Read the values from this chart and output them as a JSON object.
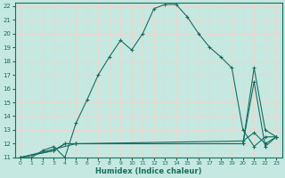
{
  "xlabel": "Humidex (Indice chaleur)",
  "xlim": [
    -0.5,
    23.5
  ],
  "ylim": [
    11,
    22.2
  ],
  "xticks": [
    0,
    1,
    2,
    3,
    4,
    5,
    6,
    7,
    8,
    9,
    10,
    11,
    12,
    13,
    14,
    15,
    16,
    17,
    18,
    19,
    20,
    21,
    22,
    23
  ],
  "yticks": [
    11,
    12,
    13,
    14,
    15,
    16,
    17,
    18,
    19,
    20,
    21,
    22
  ],
  "bg_color": "#c5e8e0",
  "grid_color": "#e8d8d0",
  "line_color": "#1a6e60",
  "line1_x": [
    0,
    1,
    2,
    3,
    4,
    5,
    6,
    7,
    8,
    9,
    10,
    11,
    12,
    13,
    14,
    15,
    16,
    17,
    18,
    19,
    20,
    21,
    22,
    23
  ],
  "line1_y": [
    11,
    11,
    11.5,
    11.8,
    11,
    13.5,
    15.2,
    17,
    18.3,
    19.5,
    18.8,
    20,
    21.8,
    22.1,
    22.1,
    21.2,
    20,
    19,
    18.3,
    17.5,
    13,
    11.8,
    12.5,
    12.5
  ],
  "line2_x": [
    0,
    3,
    4,
    5,
    20,
    21,
    22,
    23
  ],
  "line2_y": [
    11,
    11.5,
    12,
    12.0,
    12.0,
    16.5,
    11.8,
    12.5
  ],
  "line3_x": [
    0,
    3,
    4,
    5,
    20,
    21,
    22,
    23
  ],
  "line3_y": [
    11,
    11.5,
    12,
    12.0,
    12.0,
    17.5,
    13,
    12.5
  ],
  "line4_x": [
    0,
    5,
    20,
    21,
    22,
    23
  ],
  "line4_y": [
    11,
    12.0,
    12.2,
    12.8,
    12.0,
    12.5
  ]
}
